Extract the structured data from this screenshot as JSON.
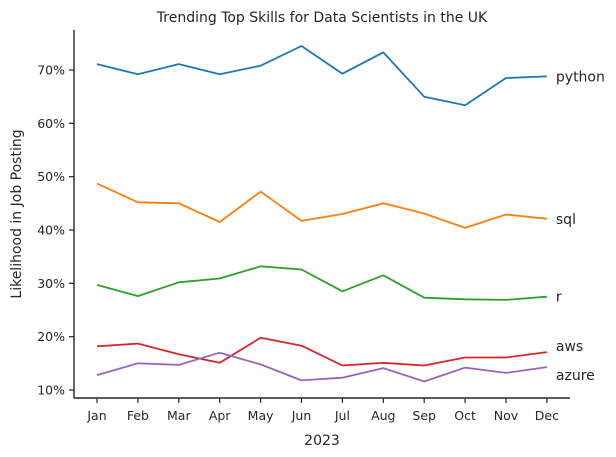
{
  "chart_data": {
    "type": "line",
    "title": "Trending Top Skills for Data Scientists in the UK",
    "xlabel": "2023",
    "ylabel": "Likelihood in Job Posting",
    "categories": [
      "Jan",
      "Feb",
      "Mar",
      "Apr",
      "May",
      "Jun",
      "Jul",
      "Aug",
      "Sep",
      "Oct",
      "Nov",
      "Dec"
    ],
    "ylim": [
      8.5,
      77.5
    ],
    "yticks": [
      10,
      20,
      30,
      40,
      50,
      60,
      70
    ],
    "ytick_labels": [
      "10%",
      "20%",
      "30%",
      "40%",
      "50%",
      "60%",
      "70%"
    ],
    "grid": false,
    "legend": "direct labels at line ends (right)",
    "series": [
      {
        "name": "python",
        "color": "#1f77b4",
        "values": [
          71.1,
          69.2,
          71.1,
          69.2,
          70.8,
          74.5,
          69.3,
          73.3,
          65.0,
          63.4,
          68.5,
          68.8
        ]
      },
      {
        "name": "sql",
        "color": "#ff7f0e",
        "values": [
          48.7,
          45.2,
          45.0,
          41.5,
          47.2,
          41.7,
          43.0,
          45.0,
          43.1,
          40.4,
          42.9,
          42.1
        ]
      },
      {
        "name": "r",
        "color": "#2ca02c",
        "values": [
          29.7,
          27.6,
          30.2,
          30.9,
          33.2,
          32.6,
          28.5,
          31.5,
          27.3,
          27.0,
          26.9,
          27.5
        ]
      },
      {
        "name": "aws",
        "color": "#d62728",
        "values": [
          18.2,
          18.7,
          16.7,
          15.1,
          19.8,
          18.3,
          14.6,
          15.1,
          14.6,
          16.1,
          16.1,
          17.1
        ]
      },
      {
        "name": "azure",
        "color": "#9467bd",
        "values": [
          12.8,
          15.0,
          14.7,
          17.0,
          14.8,
          11.8,
          12.3,
          14.1,
          11.6,
          14.2,
          13.2,
          14.3
        ]
      }
    ]
  }
}
